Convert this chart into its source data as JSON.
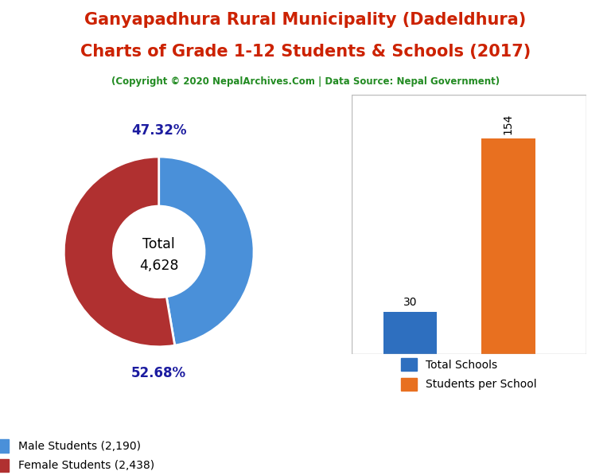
{
  "title_line1": "Ganyapadhura Rural Municipality (Dadeldhura)",
  "title_line2": "Charts of Grade 1-12 Students & Schools (2017)",
  "copyright": "(Copyright © 2020 NepalArchives.Com | Data Source: Nepal Government)",
  "title_color": "#cc2200",
  "copyright_color": "#228B22",
  "donut_values": [
    2190,
    2438
  ],
  "donut_colors": [
    "#4A90D9",
    "#B03030"
  ],
  "donut_labels": [
    "47.32%",
    "52.68%"
  ],
  "donut_total_label_line1": "Total",
  "donut_total_label_line2": "4,628",
  "male_label": "Male Students (2,190)",
  "female_label": "Female Students (2,438)",
  "bar_categories": [
    "Total Schools",
    "Students per School"
  ],
  "bar_values": [
    30,
    154
  ],
  "bar_colors": [
    "#2E6FBF",
    "#E87020"
  ],
  "label_color_donut": "#1C1CA0",
  "background_color": "#ffffff"
}
